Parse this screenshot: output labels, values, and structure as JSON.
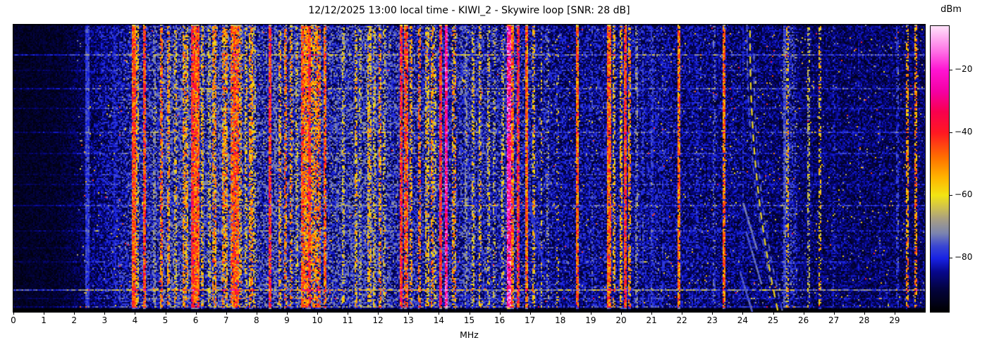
{
  "figure": {
    "title": "12/12/2025 13:00 local time - KIWI_2 - Skywire loop [SNR: 28 dB]",
    "background": "#ffffff"
  },
  "x_axis": {
    "label": "MHz",
    "min": 0,
    "max": 30,
    "ticks": [
      0,
      1,
      2,
      3,
      4,
      5,
      6,
      7,
      8,
      9,
      10,
      11,
      12,
      13,
      14,
      15,
      16,
      17,
      18,
      19,
      20,
      21,
      22,
      23,
      24,
      25,
      26,
      27,
      28,
      29
    ]
  },
  "colorbar": {
    "label": "dBm",
    "vmin": -97.3,
    "vmax": -6,
    "ticks": [
      {
        "value": -20,
        "label": "−20"
      },
      {
        "value": -40,
        "label": "−40"
      },
      {
        "value": -60,
        "label": "−60"
      },
      {
        "value": -80,
        "label": "−80"
      }
    ]
  },
  "chart_data": {
    "type": "heatmap",
    "title": "12/12/2025 13:00 local time - KIWI_2 - Skywire loop [SNR: 28 dB]",
    "xlabel": "MHz",
    "ylabel": "",
    "x_range_mhz": [
      0,
      30
    ],
    "value_unit": "dBm",
    "value_range_dbm": [
      -97.3,
      -6
    ],
    "seed": 1337,
    "colormap_stops": [
      [
        0.0,
        "#000000"
      ],
      [
        0.08,
        "#03033e"
      ],
      [
        0.14,
        "#07078c"
      ],
      [
        0.187,
        "#1822e4"
      ],
      [
        0.23,
        "#3a46d2"
      ],
      [
        0.275,
        "#7b84b0"
      ],
      [
        0.325,
        "#a89f82"
      ],
      [
        0.365,
        "#cfc14e"
      ],
      [
        0.407,
        "#f2e414"
      ],
      [
        0.47,
        "#ffb400"
      ],
      [
        0.54,
        "#ff7000"
      ],
      [
        0.626,
        "#ff1822"
      ],
      [
        0.7,
        "#f8004e"
      ],
      [
        0.77,
        "#f400a2"
      ],
      [
        0.846,
        "#ff14d2"
      ],
      [
        0.92,
        "#ff7ce8"
      ],
      [
        1.0,
        "#ffe2fa"
      ]
    ],
    "noise_floor_profile": [
      [
        0.0,
        0.045
      ],
      [
        1.5,
        0.055
      ],
      [
        2.2,
        0.085
      ],
      [
        3.0,
        0.125
      ],
      [
        4.0,
        0.155
      ],
      [
        5.0,
        0.17
      ],
      [
        10.0,
        0.17
      ],
      [
        14.0,
        0.16
      ],
      [
        17.0,
        0.145
      ],
      [
        18.2,
        0.125
      ],
      [
        19.5,
        0.135
      ],
      [
        21.0,
        0.13
      ],
      [
        22.0,
        0.12
      ],
      [
        24.0,
        0.112
      ],
      [
        26.0,
        0.102
      ],
      [
        30.0,
        0.1
      ]
    ],
    "bands": [
      {
        "f": 2.44,
        "w": 0.06,
        "level": 0.22,
        "density": 0.95
      },
      {
        "f": 3.35,
        "w": 0.05,
        "level": 0.18,
        "density": 0.6
      },
      {
        "f": 3.97,
        "w": 0.07,
        "level": 0.58,
        "density": 0.95
      },
      {
        "f": 4.08,
        "w": 0.04,
        "level": 0.46,
        "density": 0.5
      },
      {
        "f": 4.33,
        "w": 0.05,
        "level": 0.6,
        "density": 0.9
      },
      {
        "f": 4.62,
        "w": 0.05,
        "level": 0.3,
        "density": 0.5
      },
      {
        "f": 4.86,
        "w": 0.05,
        "level": 0.54,
        "density": 0.7
      },
      {
        "f": 5.12,
        "w": 0.06,
        "level": 0.5,
        "density": 0.55
      },
      {
        "f": 5.33,
        "w": 0.06,
        "level": 0.45,
        "density": 0.4
      },
      {
        "f": 5.63,
        "w": 0.05,
        "level": 0.5,
        "density": 0.55
      },
      {
        "f": 5.71,
        "w": 0.05,
        "level": 0.48,
        "density": 0.5
      },
      {
        "f": 5.89,
        "w": 0.05,
        "level": 0.62,
        "density": 0.9
      },
      {
        "f": 6.05,
        "w": 0.14,
        "level": 0.57,
        "density": 0.9
      },
      {
        "f": 6.21,
        "w": 0.05,
        "level": 0.45,
        "density": 0.5
      },
      {
        "f": 6.45,
        "w": 0.06,
        "level": 0.4,
        "density": 0.4
      },
      {
        "f": 6.62,
        "w": 0.1,
        "level": 0.5,
        "density": 0.6
      },
      {
        "f": 6.95,
        "w": 0.15,
        "level": 0.5,
        "density": 0.6
      },
      {
        "f": 7.21,
        "w": 0.06,
        "level": 0.55,
        "density": 0.75
      },
      {
        "f": 7.33,
        "w": 0.12,
        "level": 0.57,
        "density": 0.85
      },
      {
        "f": 7.46,
        "w": 0.05,
        "level": 0.48,
        "density": 0.5
      },
      {
        "f": 7.65,
        "w": 0.05,
        "level": 0.42,
        "density": 0.4
      },
      {
        "f": 7.82,
        "w": 0.08,
        "level": 0.5,
        "density": 0.6
      },
      {
        "f": 7.92,
        "w": 0.04,
        "level": 0.4,
        "density": 0.35
      },
      {
        "f": 8.45,
        "w": 0.05,
        "level": 0.63,
        "density": 0.9
      },
      {
        "f": 8.62,
        "w": 0.04,
        "level": 0.28,
        "density": 0.4
      },
      {
        "f": 8.76,
        "w": 0.05,
        "level": 0.48,
        "density": 0.5
      },
      {
        "f": 8.95,
        "w": 0.05,
        "level": 0.53,
        "density": 0.6
      },
      {
        "f": 9.15,
        "w": 0.05,
        "level": 0.5,
        "density": 0.5
      },
      {
        "f": 9.32,
        "w": 0.04,
        "level": 0.4,
        "density": 0.35
      },
      {
        "f": 9.52,
        "w": 0.07,
        "level": 0.57,
        "density": 0.85
      },
      {
        "f": 9.62,
        "w": 0.07,
        "level": 0.53,
        "density": 0.8
      },
      {
        "f": 9.76,
        "w": 0.05,
        "level": 0.62,
        "density": 0.85
      },
      {
        "f": 9.86,
        "w": 0.05,
        "level": 0.5,
        "density": 0.5
      },
      {
        "f": 9.97,
        "w": 0.04,
        "level": 0.52,
        "density": 0.6
      },
      {
        "f": 10.05,
        "w": 0.04,
        "level": 0.55,
        "density": 0.6
      },
      {
        "f": 10.27,
        "w": 0.06,
        "level": 0.56,
        "density": 0.8
      },
      {
        "f": 10.87,
        "w": 0.05,
        "level": 0.4,
        "density": 0.4
      },
      {
        "f": 11.26,
        "w": 0.06,
        "level": 0.45,
        "density": 0.45
      },
      {
        "f": 11.42,
        "w": 0.05,
        "level": 0.35,
        "density": 0.4
      },
      {
        "f": 11.72,
        "w": 0.08,
        "level": 0.45,
        "density": 0.55
      },
      {
        "f": 11.88,
        "w": 0.06,
        "level": 0.4,
        "density": 0.45
      },
      {
        "f": 12.07,
        "w": 0.07,
        "level": 0.5,
        "density": 0.55
      },
      {
        "f": 12.22,
        "w": 0.05,
        "level": 0.4,
        "density": 0.4
      },
      {
        "f": 12.76,
        "w": 0.06,
        "level": 0.63,
        "density": 0.9
      },
      {
        "f": 12.92,
        "w": 0.07,
        "level": 0.58,
        "density": 0.8
      },
      {
        "f": 13.07,
        "w": 0.05,
        "level": 0.48,
        "density": 0.5
      },
      {
        "f": 13.36,
        "w": 0.05,
        "level": 0.54,
        "density": 0.6
      },
      {
        "f": 13.62,
        "w": 0.06,
        "level": 0.45,
        "density": 0.5
      },
      {
        "f": 13.77,
        "w": 0.06,
        "level": 0.5,
        "density": 0.55
      },
      {
        "f": 13.89,
        "w": 0.05,
        "level": 0.4,
        "density": 0.4
      },
      {
        "f": 14.06,
        "w": 0.04,
        "level": 0.64,
        "density": 0.9
      },
      {
        "f": 14.24,
        "w": 0.05,
        "level": 0.8,
        "density": 0.95
      },
      {
        "f": 14.5,
        "w": 0.05,
        "level": 0.5,
        "density": 0.4
      },
      {
        "f": 14.9,
        "w": 0.05,
        "level": 0.3,
        "density": 0.5
      },
      {
        "f": 15.12,
        "w": 0.06,
        "level": 0.42,
        "density": 0.5
      },
      {
        "f": 15.36,
        "w": 0.05,
        "level": 0.45,
        "density": 0.4
      },
      {
        "f": 15.62,
        "w": 0.05,
        "level": 0.4,
        "density": 0.4
      },
      {
        "f": 15.82,
        "w": 0.04,
        "level": 0.35,
        "density": 0.3
      },
      {
        "f": 16.12,
        "w": 0.04,
        "level": 0.4,
        "density": 0.4
      },
      {
        "f": 16.32,
        "w": 0.08,
        "level": 0.82,
        "density": 0.95
      },
      {
        "f": 16.44,
        "w": 0.06,
        "level": 0.55,
        "density": 0.8
      },
      {
        "f": 16.6,
        "w": 0.05,
        "level": 0.64,
        "density": 0.85
      },
      {
        "f": 16.87,
        "w": 0.05,
        "level": 0.55,
        "density": 0.9
      },
      {
        "f": 17.14,
        "w": 0.05,
        "level": 0.45,
        "density": 0.45
      },
      {
        "f": 17.38,
        "w": 0.04,
        "level": 0.42,
        "density": 0.35
      },
      {
        "f": 17.57,
        "w": 0.04,
        "level": 0.3,
        "density": 0.3
      },
      {
        "f": 17.92,
        "w": 0.04,
        "level": 0.42,
        "density": 0.15
      },
      {
        "f": 18.57,
        "w": 0.06,
        "level": 0.55,
        "density": 0.9
      },
      {
        "f": 19.05,
        "w": 0.04,
        "level": 0.25,
        "density": 0.3
      },
      {
        "f": 19.62,
        "w": 0.1,
        "level": 0.56,
        "density": 0.9
      },
      {
        "f": 19.78,
        "w": 0.05,
        "level": 0.45,
        "density": 0.5
      },
      {
        "f": 20.02,
        "w": 0.05,
        "level": 0.48,
        "density": 0.55
      },
      {
        "f": 20.15,
        "w": 0.05,
        "level": 0.62,
        "density": 0.9
      },
      {
        "f": 20.27,
        "w": 0.04,
        "level": 0.5,
        "density": 0.6
      },
      {
        "f": 20.52,
        "w": 0.04,
        "level": 0.3,
        "density": 0.45
      },
      {
        "f": 20.72,
        "w": 0.04,
        "level": 0.22,
        "density": 0.5
      },
      {
        "f": 21.02,
        "w": 0.04,
        "level": 0.22,
        "density": 0.5
      },
      {
        "f": 21.37,
        "w": 0.04,
        "level": 0.2,
        "density": 0.4
      },
      {
        "f": 21.92,
        "w": 0.04,
        "level": 0.55,
        "density": 0.85
      },
      {
        "f": 22.52,
        "w": 0.03,
        "level": 0.2,
        "density": 0.3
      },
      {
        "f": 23.08,
        "w": 0.04,
        "level": 0.25,
        "density": 0.4
      },
      {
        "f": 23.38,
        "w": 0.05,
        "level": 0.55,
        "density": 0.85
      },
      {
        "f": 24.02,
        "w": 0.03,
        "level": 0.2,
        "density": 0.3
      },
      {
        "f": 25.37,
        "w": 0.05,
        "level": 0.24,
        "density": 0.8
      },
      {
        "f": 25.47,
        "w": 0.04,
        "level": 0.45,
        "density": 0.4
      },
      {
        "f": 25.6,
        "w": 0.25,
        "level": 0.22,
        "density": 0.3
      },
      {
        "f": 26.18,
        "w": 0.04,
        "level": 0.35,
        "density": 0.4
      },
      {
        "f": 26.53,
        "w": 0.04,
        "level": 0.45,
        "density": 0.45
      },
      {
        "f": 27.02,
        "w": 0.03,
        "level": 0.2,
        "density": 0.3
      },
      {
        "f": 27.82,
        "w": 0.03,
        "level": 0.18,
        "density": 0.3
      },
      {
        "f": 28.52,
        "w": 0.03,
        "level": 0.2,
        "density": 0.3
      },
      {
        "f": 29.08,
        "w": 0.04,
        "level": 0.22,
        "density": 0.5
      },
      {
        "f": 29.4,
        "w": 0.04,
        "level": 0.5,
        "density": 0.55
      },
      {
        "f": 29.68,
        "w": 0.04,
        "level": 0.52,
        "density": 0.6
      },
      {
        "f": 5.4,
        "w": 0.9,
        "level": 0.27,
        "density": 0.18
      },
      {
        "f": 6.8,
        "w": 0.8,
        "level": 0.28,
        "density": 0.2
      },
      {
        "f": 7.4,
        "w": 0.5,
        "level": 0.27,
        "density": 0.15
      },
      {
        "f": 9.6,
        "w": 0.6,
        "level": 0.27,
        "density": 0.15
      },
      {
        "f": 11.2,
        "w": 1.2,
        "level": 0.26,
        "density": 0.12
      },
      {
        "f": 12.0,
        "w": 0.8,
        "level": 0.26,
        "density": 0.12
      },
      {
        "f": 15.2,
        "w": 0.8,
        "level": 0.25,
        "density": 0.1
      },
      {
        "f": 16.4,
        "w": 0.5,
        "level": 0.28,
        "density": 0.15
      },
      {
        "f": 25.55,
        "w": 0.5,
        "level": 0.24,
        "density": 0.15
      }
    ],
    "hlines": [
      {
        "y": 0.105,
        "boost": 0.11
      },
      {
        "y": 0.16,
        "boost": 0.04
      },
      {
        "y": 0.22,
        "boost": 0.08
      },
      {
        "y": 0.29,
        "boost": 0.05
      },
      {
        "y": 0.375,
        "boost": 0.07
      },
      {
        "y": 0.45,
        "boost": 0.05
      },
      {
        "y": 0.52,
        "boost": 0.03
      },
      {
        "y": 0.555,
        "boost": 0.04
      },
      {
        "y": 0.63,
        "boost": 0.07
      },
      {
        "y": 0.72,
        "boost": 0.05
      },
      {
        "y": 0.78,
        "boost": 0.03
      },
      {
        "y": 0.83,
        "boost": 0.04
      },
      {
        "y": 0.925,
        "boost": 0.17
      },
      {
        "y": 0.955,
        "boost": 0.04
      },
      {
        "y": 0.985,
        "boost": 0.06
      }
    ],
    "arcs": [
      {
        "start_mhz": 24.22,
        "end_mhz": 25.15,
        "y0": 0.02,
        "y1": 1.0,
        "pow": 2.2,
        "level": 0.4,
        "dashed": true
      },
      {
        "start_mhz": 24.12,
        "end_mhz": 24.9,
        "y0": 0.0,
        "y1": 0.9,
        "pow": 2.2,
        "level": 0.24,
        "dashed": true
      },
      {
        "start_mhz": 24.35,
        "end_mhz": 25.3,
        "y0": 0.1,
        "y1": 1.0,
        "pow": 2.2,
        "level": 0.24,
        "dashed": true
      },
      {
        "start_mhz": 24.0,
        "end_mhz": 24.45,
        "y0": 0.62,
        "y1": 0.78,
        "pow": 1.0,
        "level": 0.27,
        "dashed": true
      },
      {
        "start_mhz": 24.1,
        "end_mhz": 24.6,
        "y0": 0.72,
        "y1": 0.9,
        "pow": 1.0,
        "level": 0.25,
        "dashed": true
      },
      {
        "start_mhz": 23.9,
        "end_mhz": 24.3,
        "y0": 0.86,
        "y1": 1.0,
        "pow": 1.0,
        "level": 0.24,
        "dashed": true
      },
      {
        "start_mhz": 16.95,
        "end_mhz": 17.45,
        "y0": 0.58,
        "y1": 0.84,
        "pow": 1.4,
        "level": 0.21,
        "dashed": false
      }
    ]
  }
}
